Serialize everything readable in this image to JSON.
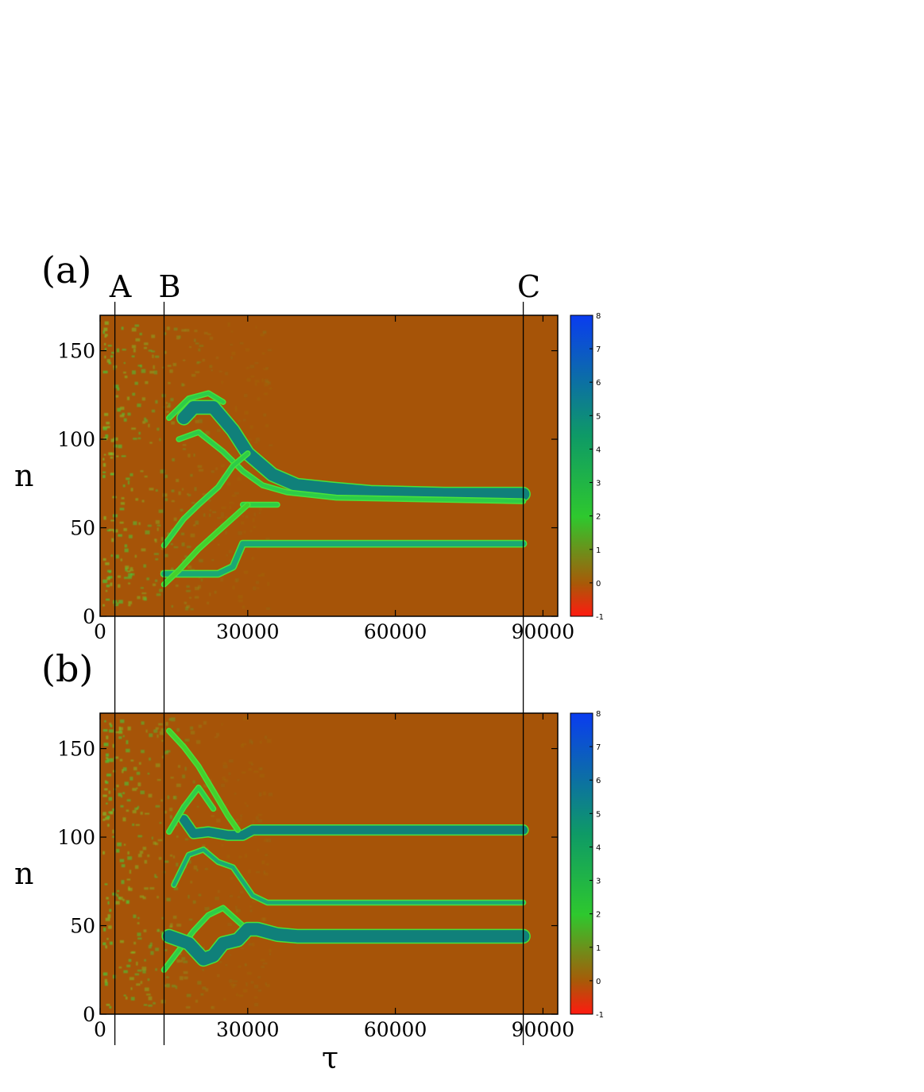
{
  "chart_data": [
    {
      "panel": "(a)",
      "type": "heatmap",
      "xlabel": "",
      "ylabel": "n",
      "xlim": [
        0,
        93000
      ],
      "ylim": [
        0,
        170
      ],
      "x_ticks": [
        "0",
        "30000",
        "60000",
        "90000"
      ],
      "x_tick_values": [
        0,
        30000,
        60000,
        90000
      ],
      "y_ticks": [
        "0",
        "50",
        "100",
        "150"
      ],
      "y_tick_values": [
        0,
        50,
        100,
        150
      ],
      "colorbar": {
        "range": [
          -1,
          8
        ],
        "ticks": [
          "-1",
          "0",
          "1",
          "2",
          "3",
          "4",
          "5",
          "6",
          "7",
          "8"
        ],
        "colors": [
          "#ff1a10",
          "#a85a08",
          "#2ec82e",
          "#0e9a66",
          "#0a3cf0"
        ],
        "background_color": "#a65408"
      },
      "tracks": [
        {
          "points": [
            [
              13000,
              24
            ],
            [
              18000,
              24
            ],
            [
              24000,
              24
            ],
            [
              27000,
              28
            ],
            [
              29000,
              41
            ],
            [
              40000,
              41
            ],
            [
              60000,
              41
            ],
            [
              86000,
              41
            ]
          ],
          "width": 3,
          "level": 4
        },
        {
          "points": [
            [
              29000,
              63
            ],
            [
              36000,
              63
            ]
          ],
          "width": 2,
          "level": 3
        },
        {
          "points": [
            [
              17000,
              112
            ],
            [
              19000,
              118
            ],
            [
              23000,
              118
            ],
            [
              27000,
              105
            ],
            [
              30000,
              92
            ],
            [
              35000,
              80
            ],
            [
              40000,
              74
            ],
            [
              47000,
              72
            ],
            [
              55000,
              70
            ],
            [
              70000,
              69
            ],
            [
              86000,
              69
            ]
          ],
          "width": 7,
          "level": 5
        },
        {
          "points": [
            [
              16000,
              100
            ],
            [
              20000,
              104
            ],
            [
              25000,
              93
            ],
            [
              29000,
              82
            ],
            [
              33000,
              74
            ],
            [
              38000,
              70
            ],
            [
              48000,
              67
            ],
            [
              86000,
              65
            ]
          ],
          "width": 2,
          "level": 3
        },
        {
          "points": [
            [
              13000,
              40
            ],
            [
              17000,
              55
            ],
            [
              20000,
              63
            ],
            [
              24000,
              73
            ],
            [
              27000,
              85
            ],
            [
              30000,
              92
            ]
          ],
          "width": 2,
          "level": 3
        },
        {
          "points": [
            [
              14000,
              112
            ],
            [
              18000,
              123
            ],
            [
              22000,
              126
            ],
            [
              25000,
              121
            ]
          ],
          "width": 2,
          "level": 3
        },
        {
          "points": [
            [
              13000,
              18
            ],
            [
              16000,
              26
            ],
            [
              20000,
              38
            ],
            [
              24000,
              48
            ],
            [
              28000,
              58
            ],
            [
              30000,
              63
            ]
          ],
          "width": 2,
          "level": 2
        }
      ],
      "events": [
        {
          "label": "A",
          "x": 3000
        },
        {
          "label": "B",
          "x": 13000
        },
        {
          "label": "C",
          "x": 86000
        }
      ]
    },
    {
      "panel": "(b)",
      "type": "heatmap",
      "xlabel": "τ",
      "ylabel": "n",
      "xlim": [
        0,
        93000
      ],
      "ylim": [
        0,
        170
      ],
      "x_ticks": [
        "0",
        "30000",
        "60000",
        "90000"
      ],
      "x_tick_values": [
        0,
        30000,
        60000,
        90000
      ],
      "y_ticks": [
        "0",
        "50",
        "100",
        "150"
      ],
      "y_tick_values": [
        0,
        50,
        100,
        150
      ],
      "colorbar": {
        "range": [
          -1,
          8
        ],
        "ticks": [
          "-1",
          "0",
          "1",
          "2",
          "3",
          "4",
          "5",
          "6",
          "7",
          "8"
        ],
        "colors": [
          "#ff1a10",
          "#a85a08",
          "#2ec82e",
          "#0e9a66",
          "#0a3cf0"
        ],
        "background_color": "#a65408"
      },
      "tracks": [
        {
          "points": [
            [
              17000,
              110
            ],
            [
              19000,
              102
            ],
            [
              22000,
              103
            ],
            [
              26000,
              101
            ],
            [
              29000,
              101
            ],
            [
              31000,
              104
            ],
            [
              40000,
              104
            ],
            [
              60000,
              104
            ],
            [
              86000,
              104
            ]
          ],
          "width": 5,
          "level": 5
        },
        {
          "points": [
            [
              14000,
              103
            ],
            [
              17000,
              117
            ],
            [
              20000,
              128
            ],
            [
              23000,
              116
            ]
          ],
          "width": 2,
          "level": 3
        },
        {
          "points": [
            [
              14000,
              160
            ],
            [
              17000,
              151
            ],
            [
              20000,
              140
            ],
            [
              23000,
              126
            ],
            [
              26000,
              112
            ],
            [
              28000,
              104
            ]
          ],
          "width": 2,
          "level": 2
        },
        {
          "points": [
            [
              15000,
              73
            ],
            [
              18000,
              90
            ],
            [
              21000,
              93
            ],
            [
              24000,
              86
            ],
            [
              27000,
              83
            ],
            [
              29000,
              75
            ],
            [
              31000,
              67
            ],
            [
              34000,
              63
            ],
            [
              50000,
              63
            ],
            [
              86000,
              63
            ]
          ],
          "width": 2,
          "level": 4
        },
        {
          "points": [
            [
              13000,
              25
            ],
            [
              16000,
              36
            ],
            [
              19000,
              47
            ],
            [
              22000,
              56
            ],
            [
              25000,
              60
            ],
            [
              27000,
              55
            ],
            [
              29000,
              50
            ]
          ],
          "width": 2,
          "level": 3
        },
        {
          "points": [
            [
              14000,
              44
            ],
            [
              18000,
              40
            ],
            [
              21000,
              31
            ],
            [
              23000,
              33
            ],
            [
              25000,
              40
            ],
            [
              28000,
              42
            ],
            [
              30000,
              48
            ],
            [
              32000,
              48
            ],
            [
              36000,
              45
            ],
            [
              40000,
              44
            ],
            [
              60000,
              44
            ],
            [
              86000,
              44
            ]
          ],
          "width": 7,
          "level": 5
        }
      ],
      "events": [
        {
          "label": "A",
          "x": 3000
        },
        {
          "label": "B",
          "x": 13000
        },
        {
          "label": "C",
          "x": 86000
        }
      ]
    }
  ]
}
